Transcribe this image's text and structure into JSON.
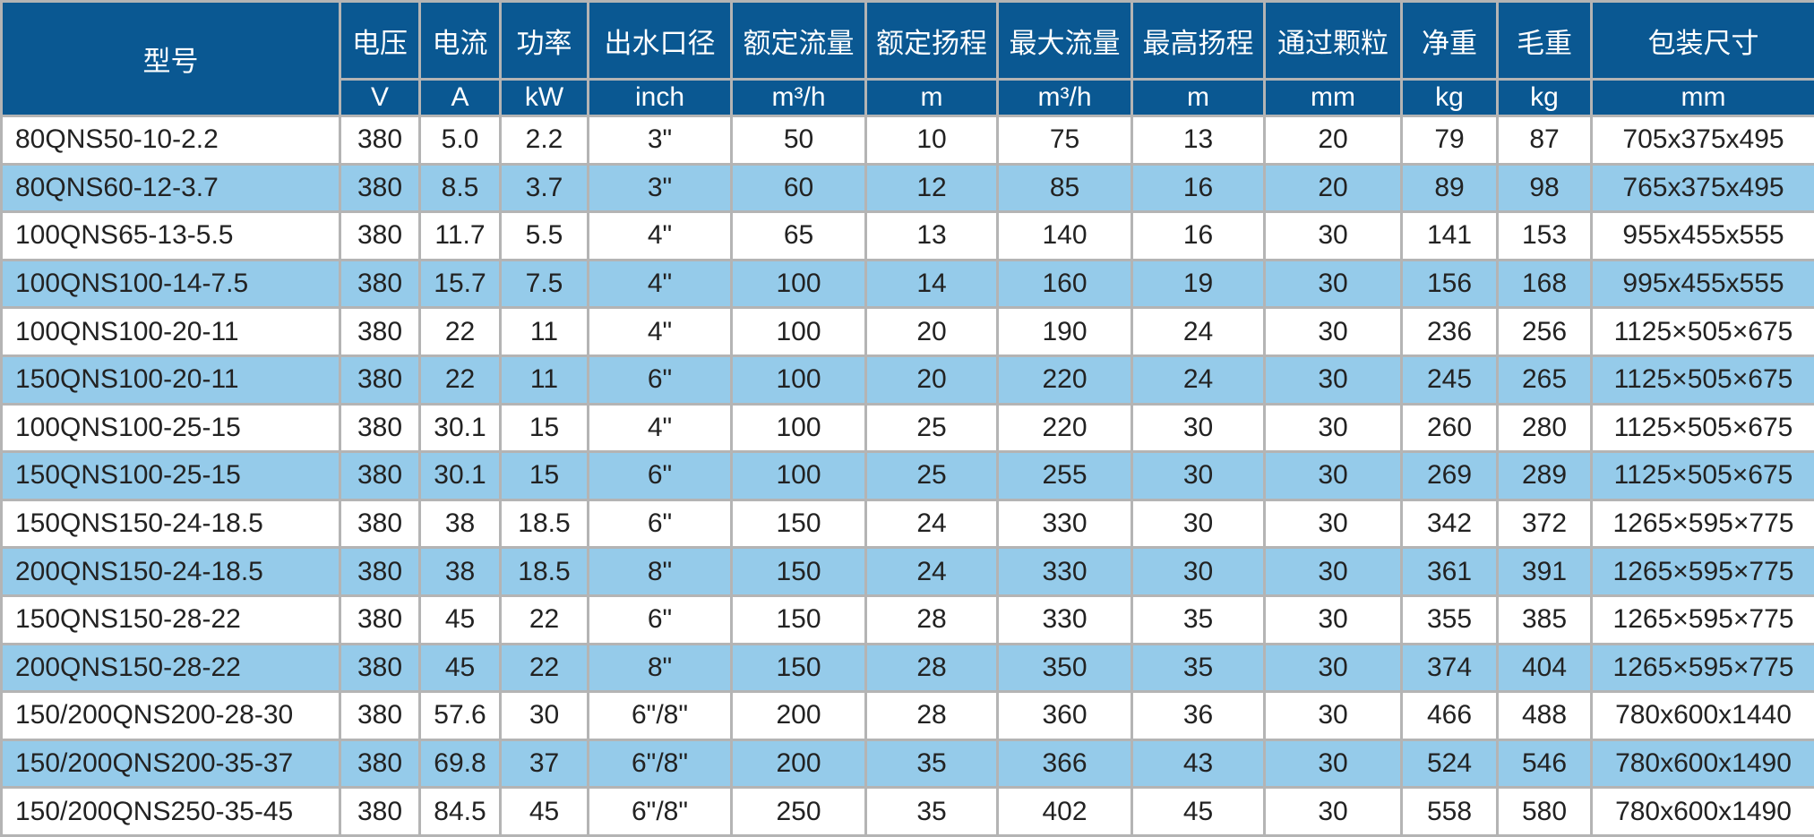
{
  "colors": {
    "header": "#0a5892",
    "alt_row": "#95cbea",
    "row": "#ffffff"
  },
  "headers": [
    "型号",
    "电压",
    "电流",
    "功率",
    "出水口径",
    "额定流量",
    "额定扬程",
    "最大流量",
    "最高扬程",
    "通过颗粒",
    "净重",
    "毛重",
    "包装尺寸"
  ],
  "units": [
    "V",
    "A",
    "kW",
    "inch",
    "m³/h",
    "m",
    "m³/h",
    "m",
    "mm",
    "kg",
    "kg",
    "mm"
  ],
  "rows": [
    [
      "80QNS50-10-2.2",
      "380",
      "5.0",
      "2.2",
      "3\"",
      "50",
      "10",
      "75",
      "13",
      "20",
      "79",
      "87",
      "705x375x495"
    ],
    [
      "80QNS60-12-3.7",
      "380",
      "8.5",
      "3.7",
      "3\"",
      "60",
      "12",
      "85",
      "16",
      "20",
      "89",
      "98",
      "765x375x495"
    ],
    [
      "100QNS65-13-5.5",
      "380",
      "11.7",
      "5.5",
      "4\"",
      "65",
      "13",
      "140",
      "16",
      "30",
      "141",
      "153",
      "955x455x555"
    ],
    [
      "100QNS100-14-7.5",
      "380",
      "15.7",
      "7.5",
      "4\"",
      "100",
      "14",
      "160",
      "19",
      "30",
      "156",
      "168",
      "995x455x555"
    ],
    [
      "100QNS100-20-11",
      "380",
      "22",
      "11",
      "4\"",
      "100",
      "20",
      "190",
      "24",
      "30",
      "236",
      "256",
      "1125×505×675"
    ],
    [
      "150QNS100-20-11",
      "380",
      "22",
      "11",
      "6\"",
      "100",
      "20",
      "220",
      "24",
      "30",
      "245",
      "265",
      "1125×505×675"
    ],
    [
      "100QNS100-25-15",
      "380",
      "30.1",
      "15",
      "4\"",
      "100",
      "25",
      "220",
      "30",
      "30",
      "260",
      "280",
      "1125×505×675"
    ],
    [
      "150QNS100-25-15",
      "380",
      "30.1",
      "15",
      "6\"",
      "100",
      "25",
      "255",
      "30",
      "30",
      "269",
      "289",
      "1125×505×675"
    ],
    [
      "150QNS150-24-18.5",
      "380",
      "38",
      "18.5",
      "6\"",
      "150",
      "24",
      "330",
      "30",
      "30",
      "342",
      "372",
      "1265×595×775"
    ],
    [
      "200QNS150-24-18.5",
      "380",
      "38",
      "18.5",
      "8\"",
      "150",
      "24",
      "330",
      "30",
      "30",
      "361",
      "391",
      "1265×595×775"
    ],
    [
      "150QNS150-28-22",
      "380",
      "45",
      "22",
      "6\"",
      "150",
      "28",
      "330",
      "35",
      "30",
      "355",
      "385",
      "1265×595×775"
    ],
    [
      "200QNS150-28-22",
      "380",
      "45",
      "22",
      "8\"",
      "150",
      "28",
      "350",
      "35",
      "30",
      "374",
      "404",
      "1265×595×775"
    ],
    [
      "150/200QNS200-28-30",
      "380",
      "57.6",
      "30",
      "6\"/8\"",
      "200",
      "28",
      "360",
      "36",
      "30",
      "466",
      "488",
      "780x600x1440"
    ],
    [
      "150/200QNS200-35-37",
      "380",
      "69.8",
      "37",
      "6\"/8\"",
      "200",
      "35",
      "366",
      "43",
      "30",
      "524",
      "546",
      "780x600x1490"
    ],
    [
      "150/200QNS250-35-45",
      "380",
      "84.5",
      "45",
      "6\"/8\"",
      "250",
      "35",
      "402",
      "45",
      "30",
      "558",
      "580",
      "780x600x1490"
    ]
  ]
}
